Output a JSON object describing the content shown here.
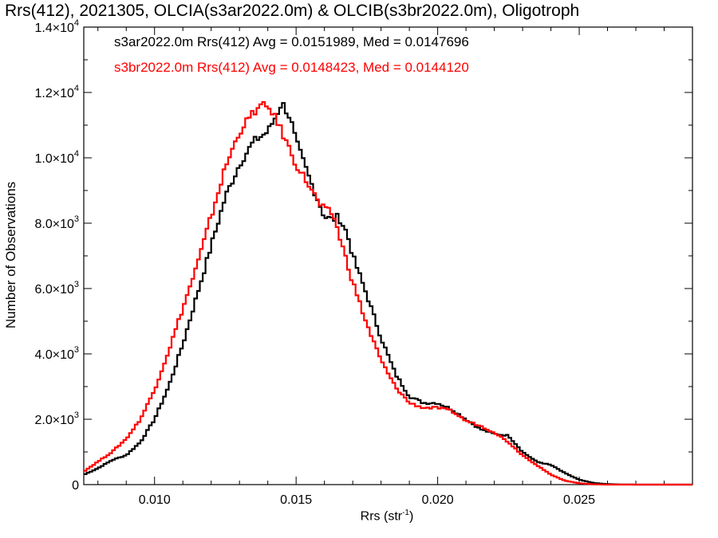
{
  "chart_data": {
    "type": "line",
    "step": true,
    "title": "Rrs(412), 2021305, OLCIA(s3ar2022.0m) & OLCIB(s3br2022.0m), Oligotroph",
    "xlabel": "Rrs (str",
    "xlabel_sup": "-1",
    "xlabel_close": ")",
    "ylabel": "Number of Observations",
    "xlim": [
      0.0075,
      0.029
    ],
    "ylim": [
      0,
      14000
    ],
    "x_ticks": [
      {
        "value": 0.01,
        "label": "0.010"
      },
      {
        "value": 0.015,
        "label": "0.015"
      },
      {
        "value": 0.02,
        "label": "0.020"
      },
      {
        "value": 0.025,
        "label": "0.025"
      }
    ],
    "y_ticks": [
      {
        "value": 0,
        "label": "0"
      },
      {
        "value": 2000,
        "label": "2.0×10",
        "exp": "3"
      },
      {
        "value": 4000,
        "label": "4.0×10",
        "exp": "3"
      },
      {
        "value": 6000,
        "label": "6.0×10",
        "exp": "3"
      },
      {
        "value": 8000,
        "label": "8.0×10",
        "exp": "3"
      },
      {
        "value": 10000,
        "label": "1.0×10",
        "exp": "4"
      },
      {
        "value": 12000,
        "label": "1.2×10",
        "exp": "4"
      },
      {
        "value": 14000,
        "label": "1.4×10",
        "exp": "4"
      }
    ],
    "legend": [
      {
        "text": "s3ar2022.0m Rrs(412) Avg = 0.0151989, Med = 0.0147696",
        "color": "#000000"
      },
      {
        "text": "s3br2022.0m Rrs(412) Avg = 0.0148423, Med = 0.0144120",
        "color": "#ff0000"
      }
    ],
    "series": [
      {
        "color": "#000000",
        "points": [
          [
            0.0075,
            300
          ],
          [
            0.008,
            500
          ],
          [
            0.0085,
            750
          ],
          [
            0.009,
            900
          ],
          [
            0.0095,
            1300
          ],
          [
            0.01,
            2000
          ],
          [
            0.0105,
            3000
          ],
          [
            0.011,
            4300
          ],
          [
            0.0115,
            5800
          ],
          [
            0.012,
            7300
          ],
          [
            0.0125,
            8800
          ],
          [
            0.013,
            9800
          ],
          [
            0.0135,
            10500
          ],
          [
            0.014,
            10800
          ],
          [
            0.0143,
            11300
          ],
          [
            0.0145,
            11700
          ],
          [
            0.0148,
            11200
          ],
          [
            0.015,
            10500
          ],
          [
            0.0155,
            9300
          ],
          [
            0.016,
            8200
          ],
          [
            0.0163,
            8100
          ],
          [
            0.0165,
            8200
          ],
          [
            0.0168,
            7700
          ],
          [
            0.017,
            7000
          ],
          [
            0.0175,
            5800
          ],
          [
            0.018,
            4500
          ],
          [
            0.0185,
            3400
          ],
          [
            0.019,
            2700
          ],
          [
            0.0195,
            2500
          ],
          [
            0.02,
            2500
          ],
          [
            0.0205,
            2300
          ],
          [
            0.021,
            2000
          ],
          [
            0.0215,
            1700
          ],
          [
            0.022,
            1550
          ],
          [
            0.0225,
            1500
          ],
          [
            0.023,
            1000
          ],
          [
            0.0235,
            700
          ],
          [
            0.024,
            600
          ],
          [
            0.0245,
            350
          ],
          [
            0.025,
            150
          ],
          [
            0.0255,
            50
          ],
          [
            0.026,
            15
          ],
          [
            0.0265,
            5
          ],
          [
            0.027,
            0
          ],
          [
            0.029,
            0
          ]
        ]
      },
      {
        "color": "#ff0000",
        "points": [
          [
            0.0075,
            400
          ],
          [
            0.008,
            700
          ],
          [
            0.0085,
            1000
          ],
          [
            0.009,
            1400
          ],
          [
            0.0095,
            2000
          ],
          [
            0.01,
            2900
          ],
          [
            0.0105,
            4100
          ],
          [
            0.011,
            5400
          ],
          [
            0.0115,
            6700
          ],
          [
            0.012,
            8200
          ],
          [
            0.0125,
            9700
          ],
          [
            0.013,
            10800
          ],
          [
            0.0135,
            11400
          ],
          [
            0.0138,
            11600
          ],
          [
            0.0141,
            11500
          ],
          [
            0.0145,
            10800
          ],
          [
            0.015,
            9800
          ],
          [
            0.0155,
            9100
          ],
          [
            0.0158,
            8600
          ],
          [
            0.016,
            8400
          ],
          [
            0.0163,
            8300
          ],
          [
            0.0165,
            7700
          ],
          [
            0.017,
            6200
          ],
          [
            0.0175,
            4900
          ],
          [
            0.018,
            3800
          ],
          [
            0.0185,
            3000
          ],
          [
            0.019,
            2500
          ],
          [
            0.0195,
            2350
          ],
          [
            0.02,
            2350
          ],
          [
            0.0205,
            2250
          ],
          [
            0.021,
            1950
          ],
          [
            0.0215,
            1800
          ],
          [
            0.022,
            1600
          ],
          [
            0.0225,
            1300
          ],
          [
            0.023,
            900
          ],
          [
            0.0235,
            600
          ],
          [
            0.024,
            300
          ],
          [
            0.0245,
            120
          ],
          [
            0.025,
            40
          ],
          [
            0.0255,
            10
          ],
          [
            0.026,
            0
          ],
          [
            0.029,
            0
          ]
        ]
      }
    ]
  }
}
